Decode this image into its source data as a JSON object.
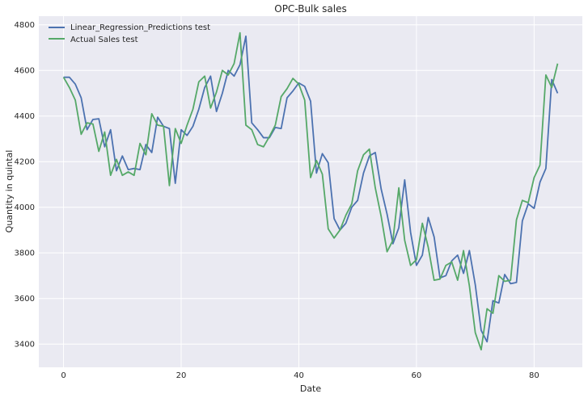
{
  "chart_data": {
    "type": "line",
    "title": "OPC-Bulk sales",
    "xlabel": "Date",
    "ylabel": "Quantity in quintal",
    "xlim": [
      -4.2,
      88.2
    ],
    "ylim": [
      3298,
      4838
    ],
    "xticks": [
      0,
      20,
      40,
      60,
      80
    ],
    "yticks": [
      3400,
      3600,
      3800,
      4000,
      4200,
      4400,
      4600,
      4800
    ],
    "grid": true,
    "legend_position": "top-left",
    "x": [
      0,
      1,
      2,
      3,
      4,
      5,
      6,
      7,
      8,
      9,
      10,
      11,
      12,
      13,
      14,
      15,
      16,
      17,
      18,
      19,
      20,
      21,
      22,
      23,
      24,
      25,
      26,
      27,
      28,
      29,
      30,
      31,
      32,
      33,
      34,
      35,
      36,
      37,
      38,
      39,
      40,
      41,
      42,
      43,
      44,
      45,
      46,
      47,
      48,
      49,
      50,
      51,
      52,
      53,
      54,
      55,
      56,
      57,
      58,
      59,
      60,
      61,
      62,
      63,
      64,
      65,
      66,
      67,
      68,
      69,
      70,
      71,
      72,
      73,
      74,
      75,
      76,
      77,
      78,
      79,
      80,
      81,
      82,
      83,
      84
    ],
    "series": [
      {
        "name": "Linear_Regression_Predictions test",
        "color": "#4c72b0",
        "values": [
          4570,
          4570,
          4540,
          4480,
          4340,
          4385,
          4388,
          4265,
          4340,
          4160,
          4225,
          4165,
          4170,
          4165,
          4275,
          4240,
          4395,
          4355,
          4345,
          4105,
          4340,
          4315,
          4355,
          4430,
          4525,
          4575,
          4420,
          4500,
          4600,
          4575,
          4625,
          4750,
          4370,
          4340,
          4305,
          4305,
          4350,
          4345,
          4480,
          4510,
          4545,
          4530,
          4465,
          4150,
          4235,
          4195,
          3950,
          3900,
          3930,
          4000,
          4030,
          4150,
          4225,
          4240,
          4080,
          3970,
          3840,
          3910,
          4120,
          3890,
          3745,
          3790,
          3955,
          3870,
          3690,
          3700,
          3765,
          3790,
          3710,
          3810,
          3660,
          3460,
          3410,
          3590,
          3580,
          3705,
          3665,
          3670,
          3940,
          4015,
          3995,
          4110,
          4170,
          4560,
          4500
        ]
      },
      {
        "name": "Actual Sales test",
        "color": "#55a868",
        "values": [
          4570,
          4525,
          4470,
          4320,
          4370,
          4365,
          4245,
          4330,
          4140,
          4210,
          4140,
          4155,
          4140,
          4280,
          4230,
          4410,
          4360,
          4355,
          4095,
          4345,
          4280,
          4360,
          4430,
          4550,
          4575,
          4435,
          4505,
          4600,
          4580,
          4630,
          4765,
          4360,
          4340,
          4275,
          4265,
          4310,
          4360,
          4485,
          4520,
          4565,
          4540,
          4470,
          4130,
          4205,
          4145,
          3905,
          3865,
          3900,
          3965,
          4015,
          4160,
          4230,
          4255,
          4085,
          3960,
          3805,
          3855,
          4085,
          3855,
          3745,
          3770,
          3930,
          3825,
          3680,
          3685,
          3745,
          3760,
          3680,
          3810,
          3655,
          3450,
          3375,
          3555,
          3535,
          3700,
          3675,
          3680,
          3945,
          4030,
          4020,
          4130,
          4185,
          4580,
          4525,
          4630
        ]
      }
    ]
  }
}
